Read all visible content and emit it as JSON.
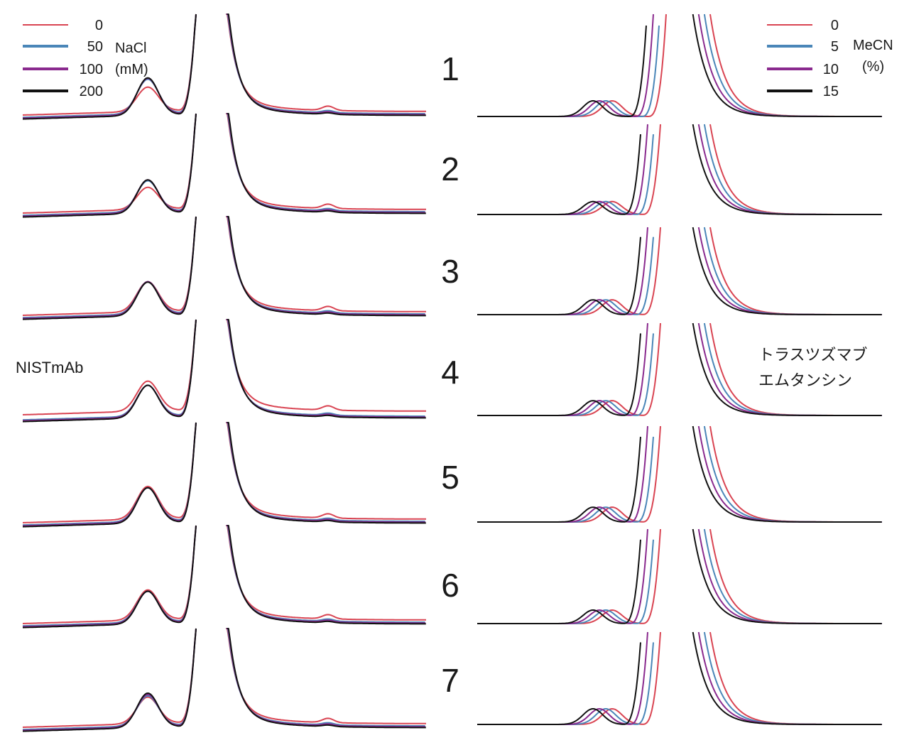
{
  "figure": {
    "left_label": "NISTmAb",
    "right_label_lines": [
      "トラスツズマブ",
      "エムタンシン"
    ],
    "row_numbers": [
      "1",
      "2",
      "3",
      "4",
      "5",
      "6",
      "7"
    ]
  },
  "legend_left": {
    "title_lines": [
      "NaCl",
      "(mM)"
    ],
    "entries": [
      {
        "label": "0",
        "color": "#d94452"
      },
      {
        "label": "50",
        "color": "#4a86b8"
      },
      {
        "label": "100",
        "color": "#8a2a8e"
      },
      {
        "label": "200",
        "color": "#111111"
      }
    ]
  },
  "legend_right": {
    "title_lines": [
      "MeCN",
      "(%)"
    ],
    "entries": [
      {
        "label": "0",
        "color": "#d94452"
      },
      {
        "label": "5",
        "color": "#4a86b8"
      },
      {
        "label": "10",
        "color": "#8a2a8e"
      },
      {
        "label": "15",
        "color": "#111111"
      }
    ]
  },
  "chart_data": [
    {
      "type": "line",
      "panel": "left",
      "axes_shown": false,
      "grid": false,
      "description_series_key": "NaCl (mM)",
      "series": [
        {
          "name": "0",
          "color": "#d94452"
        },
        {
          "name": "50",
          "color": "#4a86b8"
        },
        {
          "name": "100",
          "color": "#8a2a8e"
        },
        {
          "name": "200",
          "color": "#111111"
        }
      ],
      "rows": [
        {
          "row": "1",
          "peak_heights": [
            0.55,
            0.78,
            0.82,
            0.85
          ],
          "late_peak": [
            0.06,
            0.03,
            0.025,
            0.02
          ]
        },
        {
          "row": "2",
          "peak_heights": [
            0.5,
            0.7,
            0.74,
            0.76
          ],
          "late_peak": [
            0.06,
            0.03,
            0.025,
            0.02
          ]
        },
        {
          "row": "3",
          "peak_heights": [
            0.68,
            0.73,
            0.75,
            0.76
          ],
          "late_peak": [
            0.06,
            0.03,
            0.025,
            0.02
          ]
        },
        {
          "row": "4",
          "peak_heights": [
            0.68,
            0.7,
            0.72,
            0.74
          ],
          "late_peak": [
            0.06,
            0.03,
            0.025,
            0.02
          ]
        },
        {
          "row": "5",
          "peak_heights": [
            0.74,
            0.76,
            0.78,
            0.8
          ],
          "late_peak": [
            0.06,
            0.03,
            0.025,
            0.02
          ]
        },
        {
          "row": "6",
          "peak_heights": [
            0.68,
            0.7,
            0.72,
            0.74
          ],
          "late_peak": [
            0.06,
            0.03,
            0.025,
            0.02
          ]
        },
        {
          "row": "7",
          "peak_heights": [
            0.6,
            0.68,
            0.73,
            0.78
          ],
          "late_peak": [
            0.06,
            0.03,
            0.025,
            0.02
          ]
        }
      ]
    },
    {
      "type": "line",
      "panel": "right",
      "axes_shown": false,
      "grid": false,
      "description_series_key": "MeCN (%)",
      "series": [
        {
          "name": "0",
          "color": "#d94452"
        },
        {
          "name": "5",
          "color": "#4a86b8"
        },
        {
          "name": "10",
          "color": "#8a2a8e"
        },
        {
          "name": "15",
          "color": "#111111"
        }
      ],
      "rows": [
        {
          "row": "1",
          "peak_heights": [
            0.58,
            0.58,
            0.58,
            0.58
          ]
        },
        {
          "row": "2",
          "peak_heights": [
            0.48,
            0.48,
            0.48,
            0.48
          ]
        },
        {
          "row": "3",
          "peak_heights": [
            0.55,
            0.55,
            0.55,
            0.55
          ]
        },
        {
          "row": "4",
          "peak_heights": [
            0.55,
            0.55,
            0.55,
            0.55
          ]
        },
        {
          "row": "5",
          "peak_heights": [
            0.55,
            0.55,
            0.55,
            0.55
          ]
        },
        {
          "row": "6",
          "peak_heights": [
            0.5,
            0.5,
            0.5,
            0.5
          ]
        },
        {
          "row": "7",
          "peak_heights": [
            0.58,
            0.58,
            0.58,
            0.58
          ]
        }
      ]
    }
  ]
}
